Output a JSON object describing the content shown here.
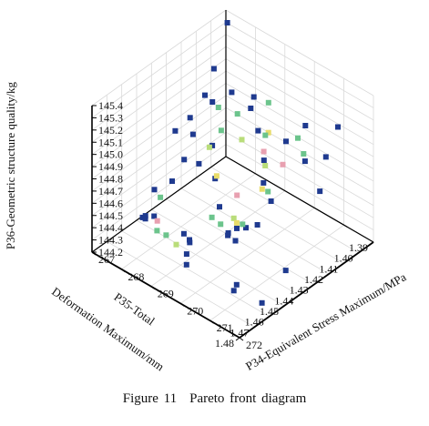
{
  "caption": {
    "figure_number": "Figure 11",
    "title": "Pareto front diagram"
  },
  "chart_data": {
    "type": "scatter",
    "projection": "3d",
    "title": "",
    "axes": {
      "x": {
        "label_line1": "P35-Total",
        "label_line2": "Deformation Maximum/mm",
        "range": [
          1.39,
          1.48
        ],
        "ticks": [
          "1.39",
          "1.40",
          "1.41",
          "1.42",
          "1.43",
          "1.44",
          "1.45",
          "1.46",
          "1.47",
          "1.48"
        ]
      },
      "y": {
        "label": "P34-Equivalent Stress Maximum/MPa",
        "range": [
          267,
          272
        ],
        "ticks": [
          "267",
          "268",
          "269",
          "270",
          "271",
          "272"
        ]
      },
      "z": {
        "label": "P36-Geometric structure quality/kg",
        "range": [
          144.2,
          145.4
        ],
        "ticks": [
          "144.2",
          "144.3",
          "144.4",
          "144.5",
          "144.6",
          "144.7",
          "144.8",
          "144.9",
          "145.0",
          "145.1",
          "145.2",
          "145.3",
          "145.4"
        ]
      }
    },
    "grid": true,
    "colors": {
      "dominated": "#1f3a8f",
      "front": "#6cc48c",
      "front_light": "#b9dd7a",
      "front_yellow": "#e8dc6a",
      "front_pink": "#e8a0b0",
      "axis": "#000000",
      "grid": "#d9d9d9"
    },
    "series": [
      {
        "values": [
          [
            1.393,
            267.2,
            145.35
          ],
          [
            1.4,
            267.1,
            145.02
          ],
          [
            1.405,
            267.3,
            144.82
          ],
          [
            1.398,
            267.6,
            144.88
          ],
          [
            1.412,
            267.4,
            144.95
          ],
          [
            1.418,
            267.2,
            144.79
          ],
          [
            1.415,
            267.8,
            144.62
          ],
          [
            1.422,
            267.5,
            144.73
          ],
          [
            1.426,
            267.9,
            144.58
          ],
          [
            1.43,
            267.3,
            144.8
          ],
          [
            1.42,
            267.1,
            144.45
          ],
          [
            1.438,
            267.6,
            144.5
          ],
          [
            1.442,
            267.2,
            144.41
          ],
          [
            1.452,
            267.4,
            144.31
          ],
          [
            1.448,
            267.1,
            144.22
          ],
          [
            1.458,
            267.7,
            144.38
          ],
          [
            1.395,
            268.2,
            144.9
          ],
          [
            1.405,
            268.6,
            144.95
          ],
          [
            1.41,
            269.1,
            144.88
          ],
          [
            1.416,
            269.6,
            144.76
          ],
          [
            1.425,
            268.4,
            144.52
          ],
          [
            1.432,
            268.9,
            144.42
          ],
          [
            1.436,
            269.4,
            144.31
          ],
          [
            1.444,
            268.3,
            144.22
          ],
          [
            1.45,
            268.8,
            144.27
          ],
          [
            1.462,
            269.3,
            144.35
          ],
          [
            1.468,
            268.5,
            144.6
          ],
          [
            1.472,
            269.8,
            144.42
          ],
          [
            1.44,
            270.2,
            144.5
          ],
          [
            1.455,
            270.6,
            144.58
          ],
          [
            1.476,
            270.1,
            144.7
          ],
          [
            1.464,
            271.1,
            144.83
          ],
          [
            1.478,
            271.5,
            144.95
          ],
          [
            1.48,
            271.9,
            144.62
          ],
          [
            1.47,
            271.3,
            144.4
          ],
          [
            1.459,
            271.7,
            144.26
          ],
          [
            1.447,
            271.9,
            144.45
          ],
          [
            1.402,
            270.3,
            145.02
          ],
          [
            1.398,
            271.2,
            145.1
          ],
          [
            1.423,
            270.7,
            145.13
          ],
          [
            1.414,
            271.6,
            145.05
          ],
          [
            1.432,
            271.8,
            145.2
          ],
          [
            1.426,
            272.0,
            144.93
          ],
          [
            1.437,
            270.9,
            144.79
          ],
          [
            1.468,
            272.0,
            145.02
          ],
          [
            1.452,
            271.4,
            145.14
          ]
        ]
      },
      {
        "values": [
          [
            1.401,
            267.3,
            144.74
          ],
          [
            1.407,
            267.7,
            144.66
          ],
          [
            1.413,
            267.6,
            144.56
          ],
          [
            1.42,
            268.2,
            144.47
          ],
          [
            1.436,
            267.1,
            144.28
          ],
          [
            1.446,
            267.5,
            144.23
          ],
          [
            1.452,
            268.1,
            144.25
          ],
          [
            1.41,
            268.4,
            144.92
          ],
          [
            1.417,
            268.9,
            144.84
          ],
          [
            1.413,
            269.6,
            144.96
          ],
          [
            1.421,
            269.9,
            145.05
          ],
          [
            1.428,
            270.2,
            145.02
          ],
          [
            1.405,
            269.2,
            145.08
          ],
          [
            1.419,
            270.9,
            145.15
          ],
          [
            1.433,
            270.5,
            144.99
          ],
          [
            1.441,
            270.8,
            144.91
          ],
          [
            1.445,
            271.2,
            144.98
          ],
          [
            1.448,
            270.3,
            144.85
          ],
          [
            1.455,
            269.8,
            144.66
          ],
          [
            1.461,
            270.4,
            144.74
          ],
          [
            1.466,
            271.1,
            144.93
          ],
          [
            1.472,
            271.5,
            145.0
          ],
          [
            1.476,
            271.9,
            145.08
          ],
          [
            1.443,
            271.6,
            145.24
          ],
          [
            1.435,
            271.9,
            145.3
          ],
          [
            1.474,
            268.9,
            144.59
          ],
          [
            1.471,
            269.4,
            144.52
          ]
        ]
      }
    ]
  }
}
